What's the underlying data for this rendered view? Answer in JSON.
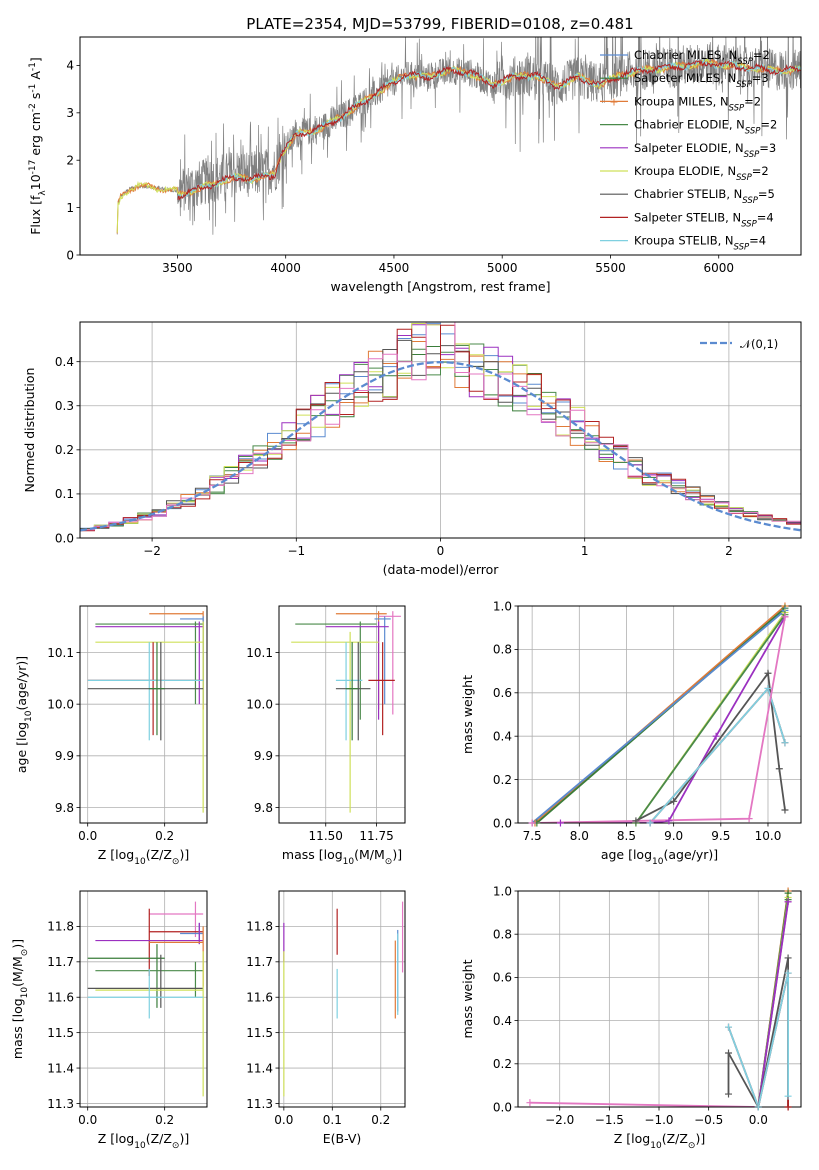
{
  "figure": {
    "title": "PLATE=2354, MJD=53799, FIBERID=0108, z=0.481"
  },
  "colors": {
    "Chabrier MILES": "#5b8bd0",
    "Salpeter MILES": "#3a7d3a",
    "Kroupa MILES": "#e07b39",
    "Chabrier ELODIE": "#4a8a4a",
    "Salpeter ELODIE": "#9b30c0",
    "Kroupa ELODIE": "#cfe05a",
    "Chabrier STELIB": "#555555",
    "Salpeter STELIB": "#b22222",
    "Kroupa STELIB": "#7fd0e0",
    "extra": "#e377c2",
    "normal": "#5b8bd0",
    "data": "#808080"
  },
  "chart_data": [
    {
      "id": "spectrum",
      "type": "line",
      "xlabel": "wavelength [Angstrom, rest frame]",
      "ylabel": "Flux [f$_\\lambda$10$^{-17}$ erg cm$^{-2}$ s$^{-1}$ A$^{-1}$]",
      "xlim": [
        3050,
        6380
      ],
      "ylim": [
        0,
        4.6
      ],
      "xticks": [
        3500,
        4000,
        4500,
        5000,
        5500,
        6000
      ],
      "yticks": [
        0,
        1,
        2,
        3,
        4
      ],
      "legend_position": "upper-right",
      "legend": [
        {
          "name": "Chabrier MILES",
          "sub": "SSP",
          "n": "2"
        },
        {
          "name": "Salpeter MILES",
          "sub": "SSP",
          "n": "3"
        },
        {
          "name": "Kroupa MILES",
          "sub": "SSP",
          "n": "2"
        },
        {
          "name": "Chabrier ELODIE",
          "sub": "SSP",
          "n": "2"
        },
        {
          "name": "Salpeter ELODIE",
          "sub": "SSP",
          "n": "3"
        },
        {
          "name": "Kroupa ELODIE",
          "sub": "SSP",
          "n": "2"
        },
        {
          "name": "Chabrier STELIB",
          "sub": "SSP",
          "n": "5"
        },
        {
          "name": "Salpeter STELIB",
          "sub": "SSP",
          "n": "4"
        },
        {
          "name": "Kroupa STELIB",
          "sub": "SSP",
          "n": "4"
        }
      ],
      "continuum": [
        [
          3220,
          0
        ],
        [
          3225,
          1.05
        ],
        [
          3240,
          1.25
        ],
        [
          3280,
          1.4
        ],
        [
          3320,
          1.45
        ],
        [
          3400,
          1.42
        ],
        [
          3500,
          1.35
        ],
        [
          3600,
          1.5
        ],
        [
          3700,
          1.65
        ],
        [
          3780,
          1.75
        ],
        [
          3850,
          1.7
        ],
        [
          3900,
          1.75
        ],
        [
          3950,
          1.8
        ],
        [
          3990,
          2.2
        ],
        [
          4050,
          2.55
        ],
        [
          4150,
          2.65
        ],
        [
          4250,
          2.9
        ],
        [
          4350,
          3.2
        ],
        [
          4450,
          3.5
        ],
        [
          4550,
          3.8
        ],
        [
          4650,
          3.75
        ],
        [
          4750,
          3.9
        ],
        [
          4850,
          3.85
        ],
        [
          4950,
          3.6
        ],
        [
          5050,
          3.75
        ],
        [
          5150,
          3.8
        ],
        [
          5250,
          3.55
        ],
        [
          5350,
          3.75
        ],
        [
          5450,
          3.6
        ],
        [
          5550,
          3.8
        ],
        [
          5650,
          3.9
        ],
        [
          5750,
          3.95
        ],
        [
          5850,
          4.0
        ],
        [
          5950,
          4.05
        ],
        [
          6050,
          4.0
        ],
        [
          6150,
          3.95
        ],
        [
          6250,
          3.9
        ],
        [
          6380,
          3.9
        ]
      ]
    },
    {
      "id": "residuals",
      "type": "line",
      "xlabel": "(data-model)/error",
      "ylabel": "Normed distribution",
      "xlim": [
        -2.5,
        2.5
      ],
      "ylim": [
        0,
        0.49
      ],
      "xticks": [
        -2,
        -1,
        0,
        1,
        2
      ],
      "xticklabels": [
        "−2",
        "−1",
        "0",
        "1",
        "2"
      ],
      "yticks": [
        0.0,
        0.1,
        0.2,
        0.3,
        0.4
      ],
      "legend_position": "upper-right",
      "legend": [
        {
          "name": "$\\mathcal{N}(0,1)$"
        }
      ]
    },
    {
      "id": "age-vs-Z",
      "type": "scatter",
      "xlabel": "Z [log$_{10}$(Z/Z$_\\odot$)]",
      "ylabel": "age  [log$_{10}$(age/yr)]",
      "xlim": [
        -0.02,
        0.31
      ],
      "ylim": [
        9.77,
        10.19
      ],
      "xticks": [
        0.0,
        0.2
      ],
      "yticks": [
        9.8,
        9.9,
        10.0,
        10.1
      ],
      "points": [
        {
          "s": "Kroupa MILES",
          "x": 0.3,
          "y": 10.175,
          "xl": 0.16,
          "xh": 0.3,
          "yl": 9.99,
          "yh": 10.18
        },
        {
          "s": "Chabrier MILES",
          "x": 0.3,
          "y": 10.165,
          "xl": 0.24,
          "xh": 0.3,
          "yl": 10.0,
          "yh": 10.17
        },
        {
          "s": "Chabrier ELODIE",
          "x": 0.28,
          "y": 10.155,
          "xl": 0.02,
          "xh": 0.3,
          "yl": 10.0,
          "yh": 10.16
        },
        {
          "s": "Salpeter ELODIE",
          "x": 0.29,
          "y": 10.15,
          "xl": 0.02,
          "xh": 0.3,
          "yl": 10.0,
          "yh": 10.16
        },
        {
          "s": "Kroupa ELODIE",
          "x": 0.3,
          "y": 10.12,
          "xl": 0.02,
          "xh": 0.3,
          "yl": 9.79,
          "yh": 10.16
        },
        {
          "s": "Salpeter STELIB",
          "x": 0.17,
          "y": 10.046,
          "xl": 0.0,
          "xh": 0.3,
          "yl": 9.94,
          "yh": 10.12
        },
        {
          "s": "Kroupa STELIB",
          "x": 0.16,
          "y": 10.046,
          "xl": 0.0,
          "xh": 0.3,
          "yl": 9.93,
          "yh": 10.12
        },
        {
          "s": "Chabrier STELIB",
          "x": 0.19,
          "y": 10.03,
          "xl": 0.0,
          "xh": 0.3,
          "yl": 9.93,
          "yh": 10.12
        },
        {
          "s": "Salpeter MILES",
          "x": 0.18,
          "y": 10.03,
          "xl": 0.16,
          "xh": 0.2,
          "yl": 9.94,
          "yh": 10.12
        }
      ]
    },
    {
      "id": "age-vs-mass",
      "type": "scatter",
      "xlabel": "mass [log$_{10}$(M/M$_\\odot$)]",
      "ylabel": "",
      "xlim": [
        11.27,
        11.89
      ],
      "ylim": [
        9.77,
        10.19
      ],
      "xticks": [
        11.5,
        11.75
      ],
      "yticks": [
        9.8,
        9.9,
        10.0,
        10.1
      ],
      "points": [
        {
          "s": "Kroupa MILES",
          "x": 11.76,
          "y": 10.175,
          "xl": 11.55,
          "xh": 11.8,
          "yl": 9.99,
          "yh": 10.18
        },
        {
          "s": "extra",
          "x": 11.83,
          "y": 10.17,
          "xl": 11.76,
          "xh": 11.87,
          "yl": 9.98,
          "yh": 10.18
        },
        {
          "s": "Chabrier MILES",
          "x": 11.79,
          "y": 10.165,
          "xl": 11.74,
          "xh": 11.82,
          "yl": 10.0,
          "yh": 10.17
        },
        {
          "s": "Chabrier ELODIE",
          "x": 11.67,
          "y": 10.155,
          "xl": 11.35,
          "xh": 11.75,
          "yl": 9.97,
          "yh": 10.16
        },
        {
          "s": "Salpeter ELODIE",
          "x": 11.76,
          "y": 10.15,
          "xl": 11.5,
          "xh": 11.81,
          "yl": 9.97,
          "yh": 10.16
        },
        {
          "s": "Kroupa ELODIE",
          "x": 11.62,
          "y": 10.12,
          "xl": 11.33,
          "xh": 11.76,
          "yl": 9.79,
          "yh": 10.14
        },
        {
          "s": "Salpeter STELIB",
          "x": 11.78,
          "y": 10.046,
          "xl": 11.71,
          "xh": 11.84,
          "yl": 9.94,
          "yh": 10.12
        },
        {
          "s": "Kroupa STELIB",
          "x": 11.6,
          "y": 10.046,
          "xl": 11.55,
          "xh": 11.68,
          "yl": 9.93,
          "yh": 10.12
        },
        {
          "s": "Chabrier STELIB",
          "x": 11.66,
          "y": 10.03,
          "xl": 11.55,
          "xh": 11.72,
          "yl": 9.93,
          "yh": 10.12
        },
        {
          "s": "Salpeter MILES",
          "x": 11.63,
          "y": 10.03,
          "xl": 11.6,
          "xh": 11.66,
          "yl": 9.93,
          "yh": 10.12
        }
      ]
    },
    {
      "id": "mass-weight-vs-age",
      "type": "line",
      "xlabel": "age  [log$_{10}$(age/yr)]",
      "ylabel": "mass weight",
      "xlim": [
        7.35,
        10.35
      ],
      "ylim": [
        0,
        1
      ],
      "xticks": [
        7.5,
        8.0,
        8.5,
        9.0,
        9.5,
        10.0
      ],
      "yticks": [
        0.0,
        0.2,
        0.4,
        0.6,
        0.8,
        1.0
      ],
      "series": [
        {
          "s": "Kroupa MILES",
          "pts": [
            [
              7.53,
              0
            ],
            [
              10.18,
              1.0
            ]
          ]
        },
        {
          "s": "Salpeter MILES",
          "pts": [
            [
              7.55,
              0
            ],
            [
              10.18,
              0.99
            ]
          ]
        },
        {
          "s": "Chabrier MILES",
          "pts": [
            [
              7.5,
              0
            ],
            [
              10.18,
              0.98
            ]
          ]
        },
        {
          "s": "Kroupa ELODIE",
          "pts": [
            [
              8.6,
              0
            ],
            [
              10.18,
              0.97
            ]
          ]
        },
        {
          "s": "Chabrier ELODIE",
          "pts": [
            [
              8.6,
              0
            ],
            [
              10.18,
              0.96
            ]
          ]
        },
        {
          "s": "Salpeter ELODIE",
          "pts": [
            [
              7.8,
              0
            ],
            [
              8.75,
              0
            ],
            [
              8.95,
              0.01
            ],
            [
              9.45,
              0.4
            ],
            [
              10.18,
              0.95
            ]
          ]
        },
        {
          "s": "Chabrier STELIB",
          "pts": [
            [
              8.6,
              0.01
            ],
            [
              9.0,
              0.1
            ],
            [
              10.0,
              0.69
            ],
            [
              10.12,
              0.25
            ],
            [
              10.18,
              0.06
            ]
          ]
        },
        {
          "s": "Salpeter STELIB",
          "pts": [
            [
              8.75,
              0.0
            ],
            [
              10.0,
              0.62
            ],
            [
              10.18,
              0.37
            ]
          ]
        },
        {
          "s": "Kroupa STELIB",
          "pts": [
            [
              8.75,
              0.0
            ],
            [
              10.0,
              0.62
            ],
            [
              10.18,
              0.37
            ]
          ]
        },
        {
          "s": "extra",
          "pts": [
            [
              7.5,
              0.0
            ],
            [
              9.8,
              0.02
            ],
            [
              10.18,
              0.95
            ]
          ]
        }
      ]
    },
    {
      "id": "mass-vs-Z",
      "type": "scatter",
      "xlabel": "Z [log$_{10}$(Z/Z$_\\odot$)]",
      "ylabel": "mass [log$_{10}$(M/M$_\\odot$)]",
      "xlim": [
        -0.02,
        0.31
      ],
      "ylim": [
        11.29,
        11.9
      ],
      "xticks": [
        0.0,
        0.2
      ],
      "yticks": [
        11.3,
        11.4,
        11.5,
        11.6,
        11.7,
        11.8
      ],
      "points": [
        {
          "s": "extra",
          "x": 0.28,
          "y": 11.835,
          "xl": 0.16,
          "xh": 0.3,
          "yl": 11.77,
          "yh": 11.87
        },
        {
          "s": "Salpeter STELIB",
          "x": 0.16,
          "y": 11.785,
          "xl": 0.16,
          "xh": 0.3,
          "yl": 11.66,
          "yh": 11.85
        },
        {
          "s": "Chabrier MILES",
          "x": 0.29,
          "y": 11.78,
          "xl": 0.24,
          "xh": 0.3,
          "yl": 11.75,
          "yh": 11.81
        },
        {
          "s": "Salpeter ELODIE",
          "x": 0.29,
          "y": 11.76,
          "xl": 0.02,
          "xh": 0.3,
          "yl": 11.75,
          "yh": 11.81
        },
        {
          "s": "Kroupa MILES",
          "x": 0.3,
          "y": 11.755,
          "xl": 0.16,
          "xh": 0.3,
          "yl": 11.63,
          "yh": 11.8
        },
        {
          "s": "Salpeter MILES",
          "x": 0.18,
          "y": 11.71,
          "xl": 0.0,
          "xh": 0.2,
          "yl": 11.57,
          "yh": 11.75
        },
        {
          "s": "Chabrier ELODIE",
          "x": 0.28,
          "y": 11.675,
          "xl": 0.02,
          "xh": 0.3,
          "yl": 11.6,
          "yh": 11.7
        },
        {
          "s": "Chabrier STELIB",
          "x": 0.19,
          "y": 11.625,
          "xl": 0.0,
          "xh": 0.3,
          "yl": 11.57,
          "yh": 11.72
        },
        {
          "s": "Kroupa ELODIE",
          "x": 0.3,
          "y": 11.62,
          "xl": 0.02,
          "xh": 0.3,
          "yl": 11.32,
          "yh": 11.73
        },
        {
          "s": "Kroupa STELIB",
          "x": 0.16,
          "y": 11.6,
          "xl": 0.0,
          "xh": 0.3,
          "yl": 11.54,
          "yh": 11.68
        }
      ]
    },
    {
      "id": "mass-vs-EBV",
      "type": "scatter",
      "xlabel": "E(B-V)",
      "ylabel": "",
      "xlim": [
        -0.01,
        0.25
      ],
      "ylim": [
        11.29,
        11.9
      ],
      "xticks": [
        0.0,
        0.1,
        0.2
      ],
      "yticks": [
        11.3,
        11.4,
        11.5,
        11.6,
        11.7,
        11.8
      ],
      "points": [
        {
          "s": "Salpeter ELODIE",
          "x": 0.0,
          "y": 11.76,
          "yl": 11.7,
          "yh": 11.81
        },
        {
          "s": "Kroupa ELODIE",
          "x": 0.0,
          "y": 11.62,
          "yl": 11.32,
          "yh": 11.73
        },
        {
          "s": "Salpeter STELIB",
          "x": 0.11,
          "y": 11.785,
          "yl": 11.72,
          "yh": 11.85
        },
        {
          "s": "Kroupa STELIB",
          "x": 0.11,
          "y": 11.6,
          "yl": 11.54,
          "yh": 11.68
        },
        {
          "s": "Kroupa MILES",
          "x": 0.23,
          "y": 11.75,
          "yl": 11.54,
          "yh": 11.76
        },
        {
          "s": "Chabrier MILES",
          "x": 0.235,
          "y": 11.72,
          "yl": 11.56,
          "yh": 11.79
        },
        {
          "s": "Kroupa STELIB",
          "x": 0.235,
          "y": 11.65,
          "yl": 11.55,
          "yh": 11.78
        },
        {
          "s": "extra",
          "x": 0.245,
          "y": 11.835,
          "yl": 11.67,
          "yh": 11.87
        }
      ]
    },
    {
      "id": "mass-weight-vs-Z",
      "type": "line",
      "xlabel": "Z [log$_{10}$(Z/Z$_\\odot$)]",
      "ylabel": "mass weight",
      "xlim": [
        -2.42,
        0.43
      ],
      "ylim": [
        0,
        1
      ],
      "xticks": [
        -2.0,
        -1.5,
        -1.0,
        -0.5,
        0.0
      ],
      "xticklabels": [
        "−2.0",
        "−1.5",
        "−1.0",
        "−0.5",
        "0.0"
      ],
      "yticks": [
        0.0,
        0.2,
        0.4,
        0.6,
        0.8,
        1.0
      ],
      "series": [
        {
          "s": "extra",
          "pts": [
            [
              -2.3,
              0.02
            ],
            [
              0.0,
              0.0
            ],
            [
              0.3,
              0.95
            ]
          ]
        },
        {
          "s": "Kroupa MILES",
          "pts": [
            [
              0.0,
              0.0
            ],
            [
              0.3,
              1.0
            ]
          ]
        },
        {
          "s": "Salpeter MILES",
          "pts": [
            [
              0.0,
              0.0
            ],
            [
              0.3,
              0.99
            ]
          ]
        },
        {
          "s": "Kroupa ELODIE",
          "pts": [
            [
              0.0,
              0.0
            ],
            [
              0.3,
              0.97
            ]
          ]
        },
        {
          "s": "Chabrier ELODIE",
          "pts": [
            [
              0.0,
              0.0
            ],
            [
              0.3,
              0.96
            ]
          ]
        },
        {
          "s": "Salpeter ELODIE",
          "pts": [
            [
              0.0,
              0.0
            ],
            [
              0.3,
              0.95
            ]
          ]
        },
        {
          "s": "Chabrier STELIB",
          "pts": [
            [
              -0.3,
              0.06
            ],
            [
              -0.3,
              0.25
            ],
            [
              0.0,
              0.0
            ],
            [
              0.3,
              0.69
            ],
            [
              0.3,
              0.0
            ]
          ]
        },
        {
          "s": "Salpeter STELIB",
          "pts": [
            [
              -0.3,
              0.37
            ],
            [
              0.0,
              0.0
            ],
            [
              0.3,
              0.62
            ],
            [
              0.3,
              0.0
            ]
          ]
        },
        {
          "s": "Kroupa STELIB",
          "pts": [
            [
              -0.3,
              0.37
            ],
            [
              0.0,
              0.0
            ],
            [
              0.3,
              0.62
            ],
            [
              0.3,
              0.05
            ]
          ]
        }
      ]
    }
  ]
}
